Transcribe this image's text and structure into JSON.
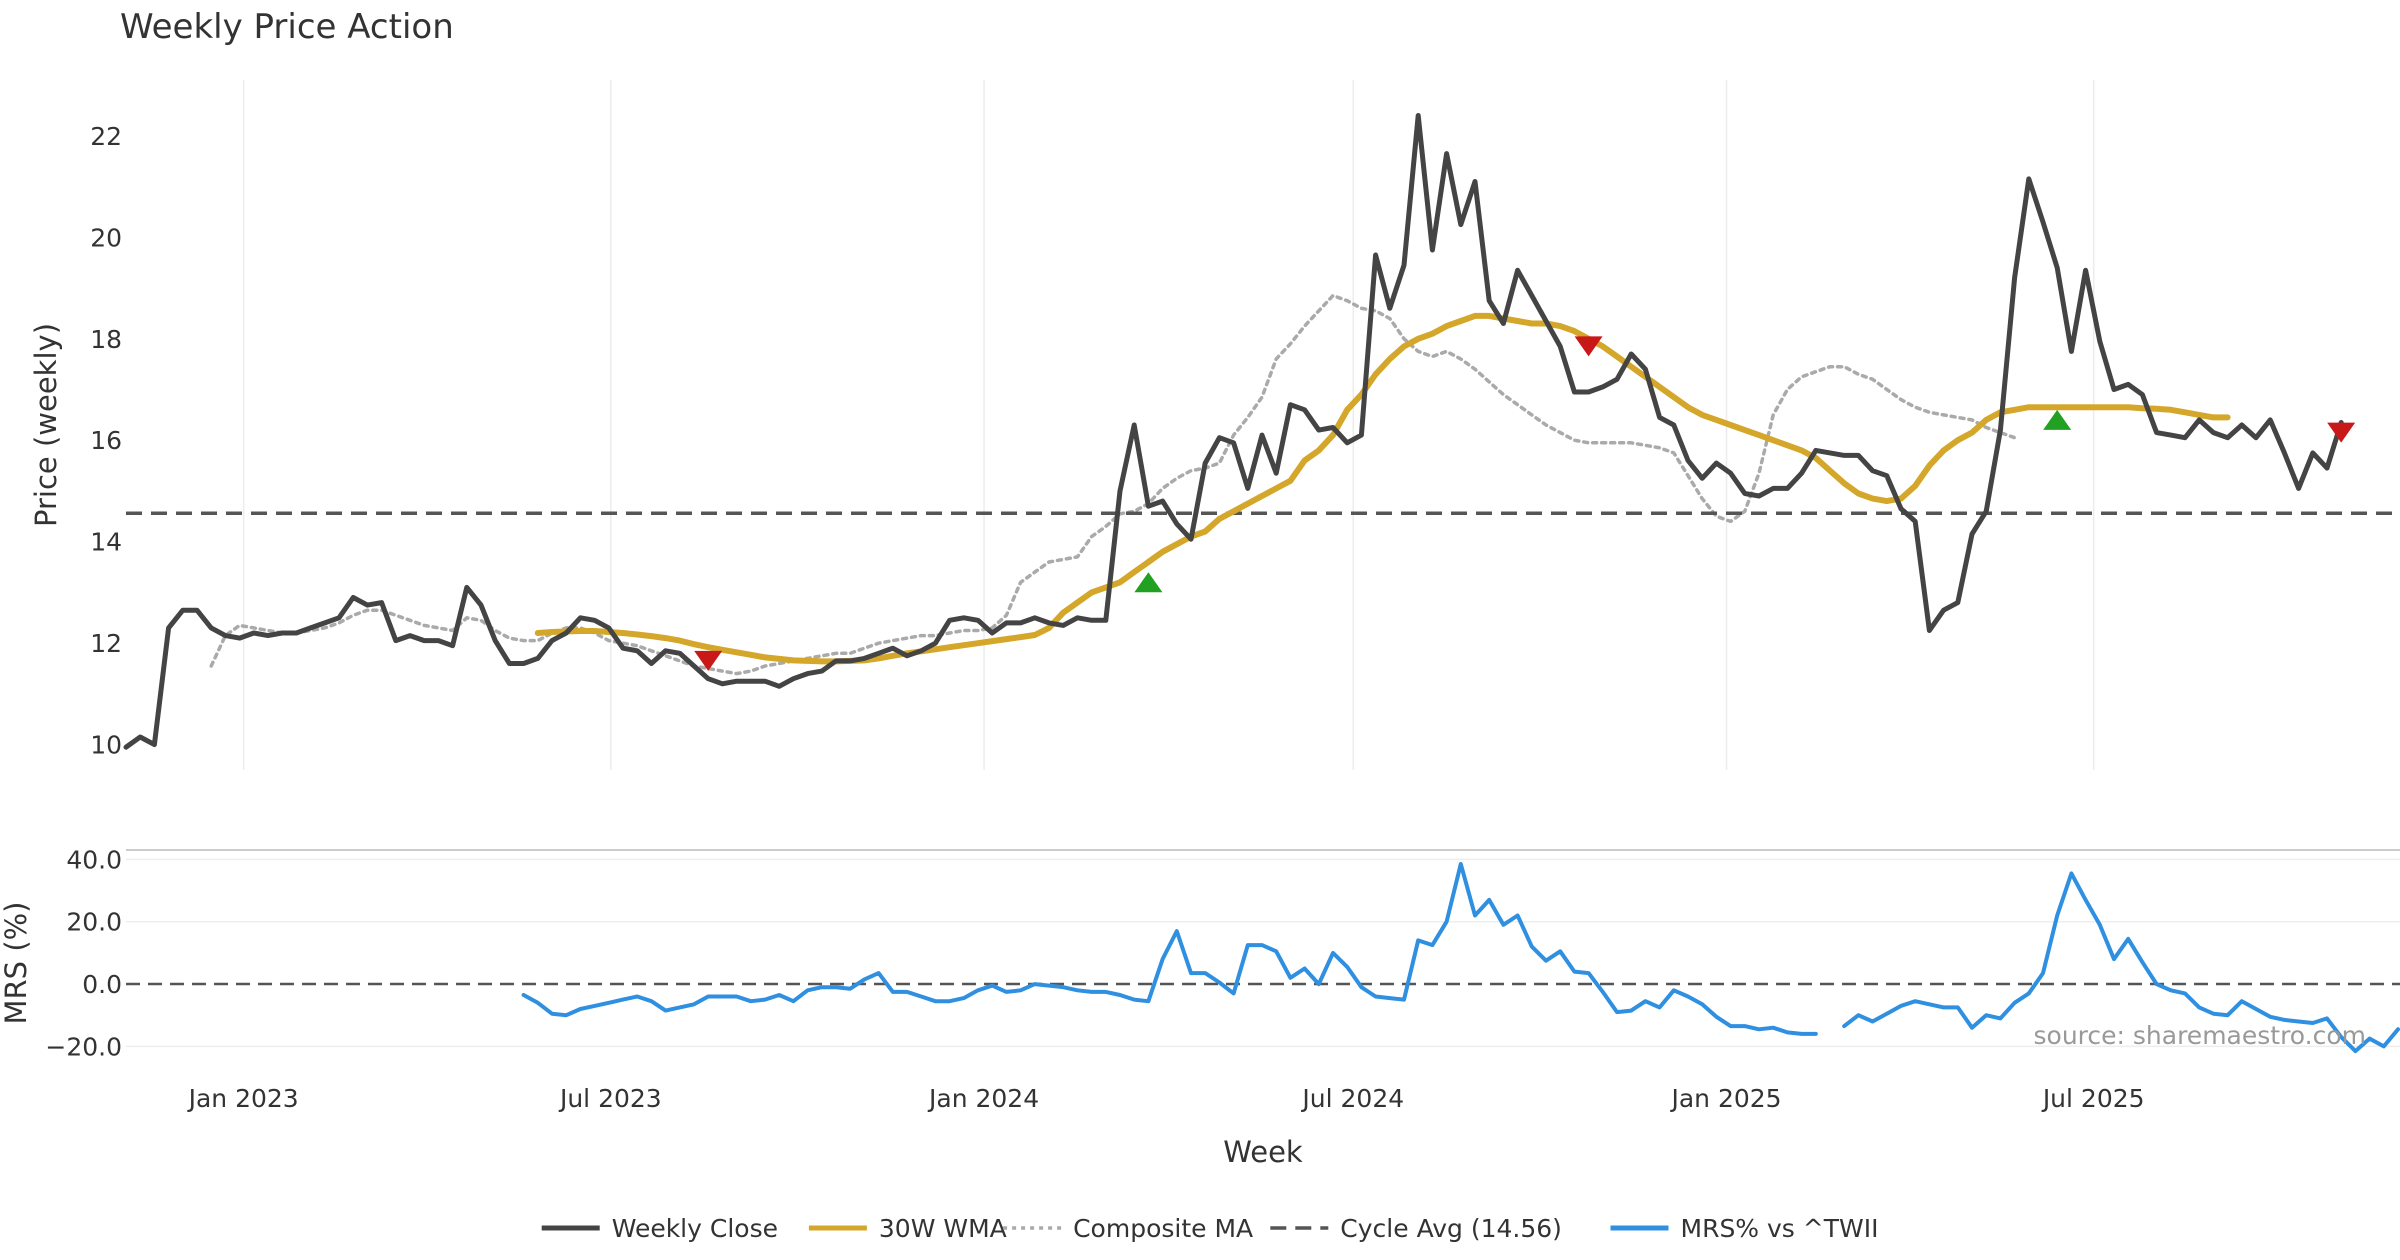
{
  "chart_data": {
    "type": "line",
    "title": "Weekly Price Action",
    "xlabel": "Week",
    "x_tick_labels": [
      "Jan 2023",
      "Jul 2023",
      "Jan 2024",
      "Jul 2024",
      "Jan 2025",
      "Jul 2025"
    ],
    "x_tick_dates": [
      "2023-01-01",
      "2023-07-01",
      "2024-01-01",
      "2024-07-01",
      "2025-01-01",
      "2025-07-01"
    ],
    "x_range": [
      "2022-11-04",
      "2025-11-29"
    ],
    "price_panel": {
      "ylabel": "Price (weekly)",
      "ylim": [
        9.5,
        23.1
      ],
      "y_ticks": [
        10,
        12,
        14,
        16,
        18,
        20,
        22
      ],
      "y_tick_labels": [
        "10",
        "12",
        "14",
        "16",
        "18",
        "20",
        "22"
      ],
      "grid": "vertical",
      "cycle_avg": 14.56
    },
    "mrs_panel": {
      "ylabel": "MRS (%)",
      "ylim": [
        -25,
        43
      ],
      "y_ticks": [
        -20,
        0,
        20,
        40
      ],
      "y_tick_labels": [
        "−20.0",
        "0.0",
        "20.0",
        "40.0"
      ],
      "grid": "horizontal",
      "zero_line": 0
    },
    "series": [
      {
        "name": "Weekly Close",
        "color": "#444444",
        "style": "solid",
        "panel": "price",
        "start": "2022-11-04",
        "step_days": 7,
        "values": [
          9.95,
          10.15,
          10.0,
          12.3,
          12.65,
          12.65,
          12.3,
          12.15,
          12.1,
          12.2,
          12.15,
          12.2,
          12.2,
          12.3,
          12.4,
          12.5,
          12.9,
          12.75,
          12.8,
          12.05,
          12.15,
          12.05,
          12.05,
          11.95,
          13.1,
          12.75,
          12.05,
          11.6,
          11.6,
          11.7,
          12.05,
          12.2,
          12.5,
          12.45,
          12.3,
          11.9,
          11.85,
          11.6,
          11.85,
          11.8,
          11.55,
          11.3,
          11.2,
          11.25,
          11.25,
          11.25,
          11.15,
          11.3,
          11.4,
          11.45,
          11.65,
          11.65,
          11.7,
          11.8,
          11.9,
          11.75,
          11.85,
          12.0,
          12.45,
          12.5,
          12.45,
          12.2,
          12.4,
          12.4,
          12.5,
          12.4,
          12.35,
          12.5,
          12.45,
          12.45,
          15.0,
          16.3,
          14.7,
          14.8,
          14.35,
          14.05,
          15.55,
          16.05,
          15.95,
          15.05,
          16.1,
          15.35,
          16.7,
          16.6,
          16.2,
          16.25,
          15.95,
          16.1,
          19.65,
          18.6,
          19.45,
          22.4,
          19.75,
          21.65,
          20.25,
          21.1,
          18.75,
          18.3,
          19.35,
          18.85,
          18.35,
          17.85,
          16.95,
          16.95,
          17.05,
          17.2,
          17.7,
          17.4,
          16.45,
          16.3,
          15.6,
          15.25,
          15.55,
          15.35,
          14.95,
          14.9,
          15.05,
          15.05,
          15.35,
          15.8,
          15.75,
          15.7,
          15.7,
          15.4,
          15.3,
          14.65,
          14.4,
          12.25,
          12.65,
          12.8,
          14.15,
          14.6,
          16.2,
          19.2,
          21.15,
          20.3,
          19.4,
          17.75,
          19.35,
          17.95,
          17.0,
          17.1,
          16.9,
          16.15,
          16.1,
          16.05,
          16.4,
          16.15,
          16.05,
          16.3,
          16.05,
          16.4,
          15.75,
          15.05,
          15.75,
          15.45,
          16.35
        ]
      },
      {
        "name": "30W WMA",
        "color": "#d4a62a",
        "style": "solid",
        "panel": "price",
        "start": "2023-05-26",
        "step_days": 7,
        "values": [
          12.2,
          12.22,
          12.23,
          12.24,
          12.24,
          12.22,
          12.2,
          12.17,
          12.14,
          12.1,
          12.05,
          11.98,
          11.92,
          11.87,
          11.82,
          11.77,
          11.72,
          11.69,
          11.66,
          11.65,
          11.64,
          11.64,
          11.65,
          11.66,
          11.7,
          11.75,
          11.8,
          11.84,
          11.88,
          11.92,
          11.96,
          12.0,
          12.04,
          12.08,
          12.12,
          12.16,
          12.3,
          12.6,
          12.8,
          13.0,
          13.1,
          13.2,
          13.4,
          13.6,
          13.8,
          13.95,
          14.1,
          14.2,
          14.45,
          14.6,
          14.75,
          14.9,
          15.05,
          15.2,
          15.6,
          15.8,
          16.1,
          16.6,
          16.9,
          17.3,
          17.6,
          17.85,
          18.0,
          18.1,
          18.25,
          18.35,
          18.45,
          18.45,
          18.4,
          18.35,
          18.3,
          18.3,
          18.25,
          18.15,
          18.0,
          17.85,
          17.65,
          17.45,
          17.25,
          17.05,
          16.85,
          16.65,
          16.5,
          16.4,
          16.3,
          16.2,
          16.1,
          16.0,
          15.9,
          15.8,
          15.65,
          15.4,
          15.15,
          14.95,
          14.85,
          14.8,
          14.85,
          15.1,
          15.5,
          15.8,
          16.0,
          16.15,
          16.4,
          16.55,
          16.6,
          16.65,
          16.65,
          16.65,
          16.65,
          16.65,
          16.65,
          16.65,
          16.65,
          16.63,
          16.62,
          16.6,
          16.55,
          16.5,
          16.45,
          16.45
        ]
      },
      {
        "name": "Composite MA",
        "color": "#aaaaaa",
        "style": "dotted",
        "panel": "price",
        "start": "2022-12-16",
        "step_days": 7,
        "values": [
          11.55,
          12.15,
          12.35,
          12.3,
          12.25,
          12.2,
          12.2,
          12.25,
          12.3,
          12.4,
          12.55,
          12.65,
          12.65,
          12.55,
          12.45,
          12.35,
          12.3,
          12.25,
          12.5,
          12.45,
          12.25,
          12.1,
          12.05,
          12.05,
          12.2,
          12.3,
          12.3,
          12.2,
          12.05,
          12.0,
          11.95,
          11.85,
          11.75,
          11.65,
          11.55,
          11.5,
          11.45,
          11.4,
          11.45,
          11.55,
          11.6,
          11.65,
          11.7,
          11.75,
          11.8,
          11.8,
          11.9,
          12.0,
          12.05,
          12.1,
          12.15,
          12.15,
          12.2,
          12.25,
          12.25,
          12.3,
          12.55,
          13.2,
          13.4,
          13.6,
          13.65,
          13.7,
          14.1,
          14.3,
          14.55,
          14.6,
          14.75,
          15.05,
          15.25,
          15.4,
          15.45,
          15.55,
          16.1,
          16.45,
          16.85,
          17.6,
          17.9,
          18.25,
          18.55,
          18.85,
          18.75,
          18.6,
          18.55,
          18.4,
          18.0,
          17.75,
          17.65,
          17.75,
          17.6,
          17.4,
          17.15,
          16.9,
          16.7,
          16.5,
          16.3,
          16.15,
          16.0,
          15.95,
          15.95,
          15.95,
          15.95,
          15.9,
          15.85,
          15.75,
          15.3,
          14.85,
          14.5,
          14.4,
          14.6,
          15.35,
          16.5,
          17.0,
          17.25,
          17.35,
          17.45,
          17.45,
          17.3,
          17.2,
          17.0,
          16.8,
          16.65,
          16.55,
          16.5,
          16.45,
          16.4,
          16.25,
          16.15,
          16.05
        ]
      },
      {
        "name": "Cycle Avg (14.56)",
        "color": "#555555",
        "style": "dashed",
        "panel": "price",
        "value": 14.56
      },
      {
        "name": "MRS% vs ^TWII",
        "color": "#2f8fe0",
        "style": "solid",
        "panel": "mrs",
        "start": "2023-05-19",
        "step_days": 7,
        "values": [
          -3.5,
          -6.0,
          -9.5,
          -10.0,
          -8.0,
          -7.0,
          -6.0,
          -5.0,
          -4.0,
          -5.5,
          -8.5,
          -7.5,
          -6.5,
          -4.0,
          -4.0,
          -4.0,
          -5.5,
          -5.0,
          -3.5,
          -5.5,
          -2.0,
          -1.0,
          -1.0,
          -1.5,
          1.5,
          3.5,
          -2.5,
          -2.5,
          -4.0,
          -5.5,
          -5.5,
          -4.5,
          -2.0,
          -0.5,
          -2.5,
          -2.0,
          0.0,
          -0.5,
          -1.0,
          -2.0,
          -2.5,
          -2.5,
          -3.5,
          -5.0,
          -5.5,
          8.0,
          17.0,
          3.5,
          3.5,
          0.5,
          -3.0,
          12.5,
          12.5,
          10.5,
          2.0,
          5.0,
          0.0,
          10.0,
          5.5,
          -1.0,
          -4.0,
          -4.5,
          -5.0,
          14.0,
          12.5,
          20.0,
          38.5,
          22.0,
          27.0,
          19.0,
          22.0,
          12.0,
          7.5,
          10.5,
          4.0,
          3.5,
          -2.5,
          -9.0,
          -8.5,
          -5.5,
          -7.5,
          -2.0,
          -4.0,
          -6.5,
          -10.5,
          -13.5,
          -13.5,
          -14.5,
          -14.0,
          -15.5,
          -16.0,
          -16.0,
          null,
          -13.5,
          -10.0,
          -12.0,
          -9.5,
          -7.0,
          -5.5,
          -6.5,
          -7.5,
          -7.5,
          -14.0,
          -10.0,
          -11.0,
          -6.0,
          -3.0,
          3.5,
          22.0,
          35.5,
          27.0,
          19.0,
          8.0,
          14.5,
          7.0,
          0.0,
          -2.0,
          -3.0,
          -7.5,
          -9.5,
          -10.0,
          -5.5,
          -8.0,
          -10.5,
          -11.5,
          -12.0,
          -12.5,
          -11.0,
          -17.0,
          -21.5,
          -17.5,
          -20.0,
          -14.5
        ]
      }
    ],
    "signals": [
      {
        "type": "buy",
        "marker": "up-triangle",
        "color": "#22a022",
        "date": "2024-03-22",
        "value": 13.2
      },
      {
        "type": "buy",
        "marker": "up-triangle",
        "color": "#22a022",
        "date": "2025-06-13",
        "value": 16.4
      },
      {
        "type": "sell",
        "marker": "down-triangle",
        "color": "#c81818",
        "date": "2023-08-18",
        "value": 11.65
      },
      {
        "type": "sell",
        "marker": "down-triangle",
        "color": "#c81818",
        "date": "2024-10-25",
        "value": 17.85
      },
      {
        "type": "sell",
        "marker": "down-triangle",
        "color": "#c81818",
        "date": "2025-10-31",
        "value": 16.15
      }
    ],
    "legend": {
      "placement": "bottom-center",
      "items": [
        {
          "label": "Weekly Close",
          "color": "#444444",
          "style": "solid"
        },
        {
          "label": "30W WMA",
          "color": "#d4a62a",
          "style": "solid"
        },
        {
          "label": "Composite MA",
          "color": "#aaaaaa",
          "style": "dotted"
        },
        {
          "label": "Cycle Avg (14.56)",
          "color": "#555555",
          "style": "dashed"
        },
        {
          "label": "MRS% vs ^TWII",
          "color": "#2f8fe0",
          "style": "solid"
        }
      ]
    },
    "annotation": "source: sharemaestro.com"
  }
}
